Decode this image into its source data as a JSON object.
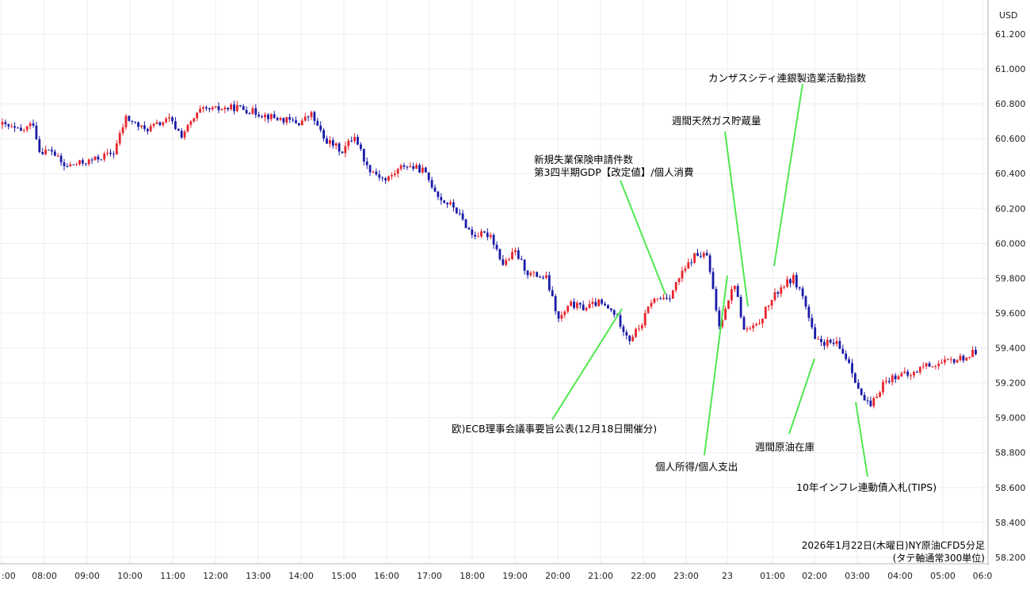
{
  "chart_data": {
    "type": "candlestick",
    "title": "",
    "currency": "USD",
    "ylim": [
      58.2,
      61.35
    ],
    "y_ticks": [
      "61.200",
      "61.000",
      "60.800",
      "60.600",
      "60.400",
      "60.200",
      "60.000",
      "59.800",
      "59.600",
      "59.400",
      "59.200",
      "59.000",
      "58.800",
      "58.600",
      "58.400",
      "58.200"
    ],
    "x_ticks": [
      ":00",
      "08:00",
      "09:00",
      "10:00",
      "11:00",
      "12:00",
      "13:00",
      "14:00",
      "15:00",
      "16:00",
      "17:00",
      "18:00",
      "19:00",
      "20:00",
      "21:00",
      "22:00",
      "23:00",
      "23",
      "01:00",
      "02:00",
      "03:00",
      "04:00",
      "05:00",
      "06:0"
    ],
    "grid": true,
    "up_color": "#e8242d",
    "down_color": "#1a1aa8",
    "annotation_color": "#4fe84f",
    "caption": [
      "2026年1月22日(木曜日)NY原油CFD5分足",
      "(タテ軸通常300単位)"
    ],
    "anchors": [
      {
        "t": 0,
        "p": 60.68
      },
      {
        "t": 6,
        "p": 60.64
      },
      {
        "t": 10,
        "p": 60.69
      },
      {
        "t": 12,
        "p": 60.53
      },
      {
        "t": 16,
        "p": 60.53
      },
      {
        "t": 20,
        "p": 60.44
      },
      {
        "t": 28,
        "p": 60.47
      },
      {
        "t": 36,
        "p": 60.52
      },
      {
        "t": 40,
        "p": 60.72
      },
      {
        "t": 46,
        "p": 60.65
      },
      {
        "t": 54,
        "p": 60.71
      },
      {
        "t": 58,
        "p": 60.62
      },
      {
        "t": 64,
        "p": 60.76
      },
      {
        "t": 76,
        "p": 60.78
      },
      {
        "t": 88,
        "p": 60.72
      },
      {
        "t": 96,
        "p": 60.69
      },
      {
        "t": 100,
        "p": 60.74
      },
      {
        "t": 104,
        "p": 60.6
      },
      {
        "t": 110,
        "p": 60.53
      },
      {
        "t": 114,
        "p": 60.62
      },
      {
        "t": 118,
        "p": 60.44
      },
      {
        "t": 124,
        "p": 60.36
      },
      {
        "t": 130,
        "p": 60.45
      },
      {
        "t": 136,
        "p": 60.42
      },
      {
        "t": 142,
        "p": 60.25
      },
      {
        "t": 146,
        "p": 60.21
      },
      {
        "t": 152,
        "p": 60.05
      },
      {
        "t": 158,
        "p": 60.05
      },
      {
        "t": 162,
        "p": 59.88
      },
      {
        "t": 166,
        "p": 59.95
      },
      {
        "t": 170,
        "p": 59.83
      },
      {
        "t": 176,
        "p": 59.8
      },
      {
        "t": 180,
        "p": 59.56
      },
      {
        "t": 184,
        "p": 59.65
      },
      {
        "t": 188,
        "p": 59.63
      },
      {
        "t": 193,
        "p": 59.66
      },
      {
        "t": 198,
        "p": 59.6
      },
      {
        "t": 203,
        "p": 59.45
      },
      {
        "t": 207,
        "p": 59.54
      },
      {
        "t": 210,
        "p": 59.67
      },
      {
        "t": 216,
        "p": 59.7
      },
      {
        "t": 219,
        "p": 59.8
      },
      {
        "t": 224,
        "p": 59.93
      },
      {
        "t": 228,
        "p": 59.93
      },
      {
        "t": 232,
        "p": 59.52
      },
      {
        "t": 234,
        "p": 59.64
      },
      {
        "t": 237,
        "p": 59.77
      },
      {
        "t": 240,
        "p": 59.5
      },
      {
        "t": 244,
        "p": 59.52
      },
      {
        "t": 248,
        "p": 59.65
      },
      {
        "t": 252,
        "p": 59.75
      },
      {
        "t": 256,
        "p": 59.8
      },
      {
        "t": 259,
        "p": 59.7
      },
      {
        "t": 263,
        "p": 59.44
      },
      {
        "t": 270,
        "p": 59.42
      },
      {
        "t": 274,
        "p": 59.32
      },
      {
        "t": 278,
        "p": 59.12
      },
      {
        "t": 281,
        "p": 59.06
      },
      {
        "t": 285,
        "p": 59.2
      },
      {
        "t": 290,
        "p": 59.25
      },
      {
        "t": 294,
        "p": 59.24
      },
      {
        "t": 298,
        "p": 59.3
      },
      {
        "t": 304,
        "p": 59.31
      },
      {
        "t": 308,
        "p": 59.33
      },
      {
        "t": 312,
        "p": 59.35
      },
      {
        "t": 315,
        "p": 59.38
      }
    ],
    "annotations": [
      {
        "lines": [
          "欧)ECB理事会議事要旨公表(12月18日開催分)"
        ],
        "anchor_label": "ECB"
      },
      {
        "lines": [
          "新規失業保険申請件数",
          "第3四半期GDP【改定値】/個人消費"
        ],
        "anchor_label": "GDP"
      },
      {
        "lines": [
          "週間天然ガス貯蔵量"
        ],
        "anchor_label": "Gas"
      },
      {
        "lines": [
          "カンザスシティ連銀製造業活動指数"
        ],
        "anchor_label": "KC"
      },
      {
        "lines": [
          "個人所得/個人支出"
        ],
        "anchor_label": "PCE"
      },
      {
        "lines": [
          "週間原油在庫"
        ],
        "anchor_label": "Crude"
      },
      {
        "lines": [
          "10年インフレ連動債入札(TIPS)"
        ],
        "anchor_label": "TIPS"
      }
    ]
  }
}
